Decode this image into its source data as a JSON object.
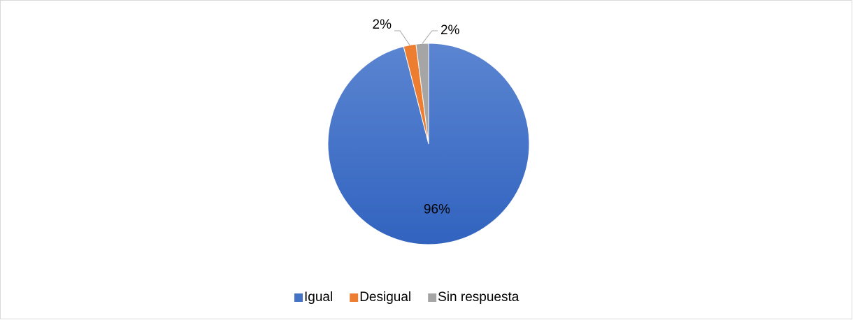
{
  "chart_data": {
    "type": "pie",
    "categories": [
      "Igual",
      "Desigual",
      "Sin respuesta"
    ],
    "values": [
      96,
      2,
      2
    ],
    "value_labels": [
      "96%",
      "2%",
      "2%"
    ],
    "colors": [
      "#4472c4",
      "#ed7d31",
      "#a5a5a5"
    ],
    "legend": "bottom"
  }
}
